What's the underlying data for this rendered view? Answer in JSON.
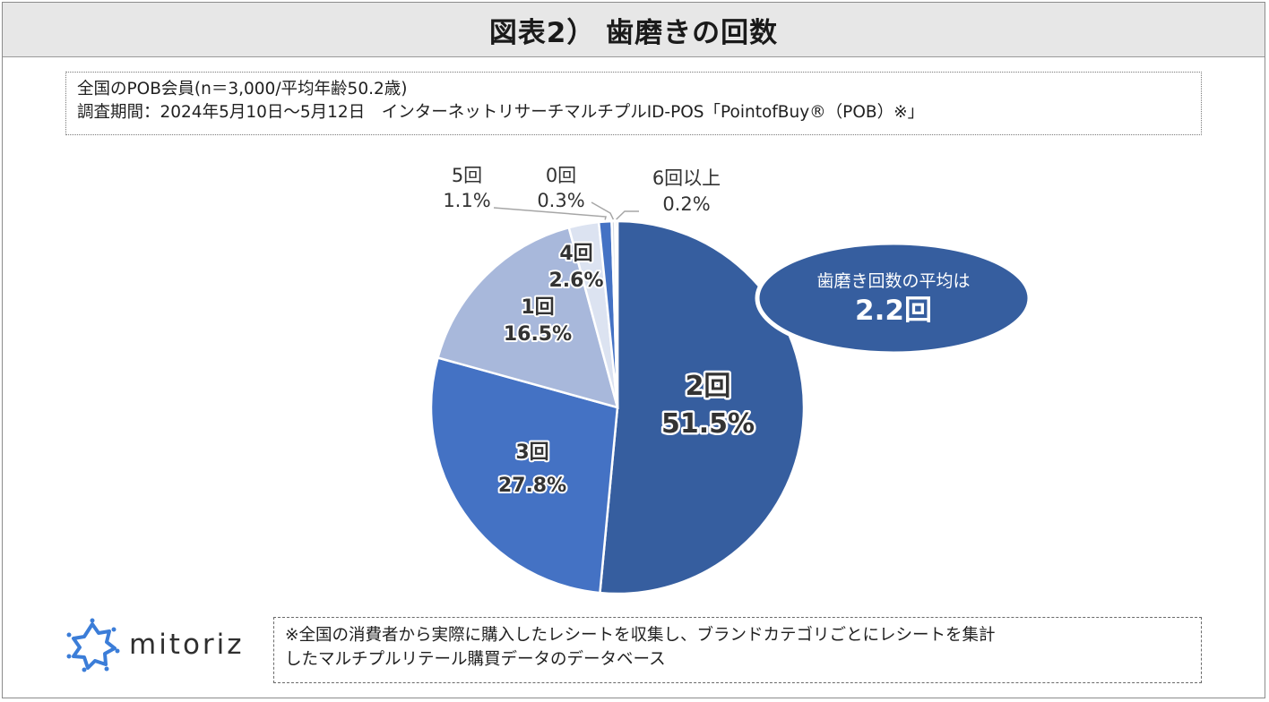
{
  "title": "図表2） 歯磨きの回数",
  "info": {
    "line1": "全国のPOB会員(n＝3,000/平均年齢50.2歳)",
    "line2": "調査期間：2024年5月10日〜5月12日　インターネットリサーチマルチプルID-POS「PointofBuy®（POB）※」"
  },
  "callout": {
    "line1": "歯磨き回数の平均は",
    "line2": "2.2回"
  },
  "note": {
    "line1": "※全国の消費者から実際に購入したレシートを収集し、ブランドカテゴリごとにレシートを集計",
    "line2": "したマルチプルリテール購買データのデータベース"
  },
  "logo": {
    "text": "mitoriz",
    "icon": "mitoriz-logo-icon"
  },
  "colors": {
    "c2": "#365e9f",
    "c3": "#4472c4",
    "c1": "#a8b8db",
    "c4": "#dce3f1",
    "c5": "#4472c4",
    "c0": "#d6dce4",
    "c6": "#9e9e9e",
    "callout": "#365e9f"
  },
  "chart_data": {
    "type": "pie",
    "title": "図表2） 歯磨きの回数",
    "slices": [
      {
        "label": "2回",
        "pct_text": "51.5%",
        "value": 51.5,
        "color": "#365e9f"
      },
      {
        "label": "3回",
        "pct_text": "27.8%",
        "value": 27.8,
        "color": "#4472c4"
      },
      {
        "label": "1回",
        "pct_text": "16.5%",
        "value": 16.5,
        "color": "#a8b8db"
      },
      {
        "label": "4回",
        "pct_text": "2.6%",
        "value": 2.6,
        "color": "#dce3f1"
      },
      {
        "label": "5回",
        "pct_text": "1.1%",
        "value": 1.1,
        "color": "#4472c4"
      },
      {
        "label": "0回",
        "pct_text": "0.3%",
        "value": 0.3,
        "color": "#d6dce4"
      },
      {
        "label": "6回以上",
        "pct_text": "0.2%",
        "value": 0.2,
        "color": "#9e9e9e"
      }
    ]
  }
}
